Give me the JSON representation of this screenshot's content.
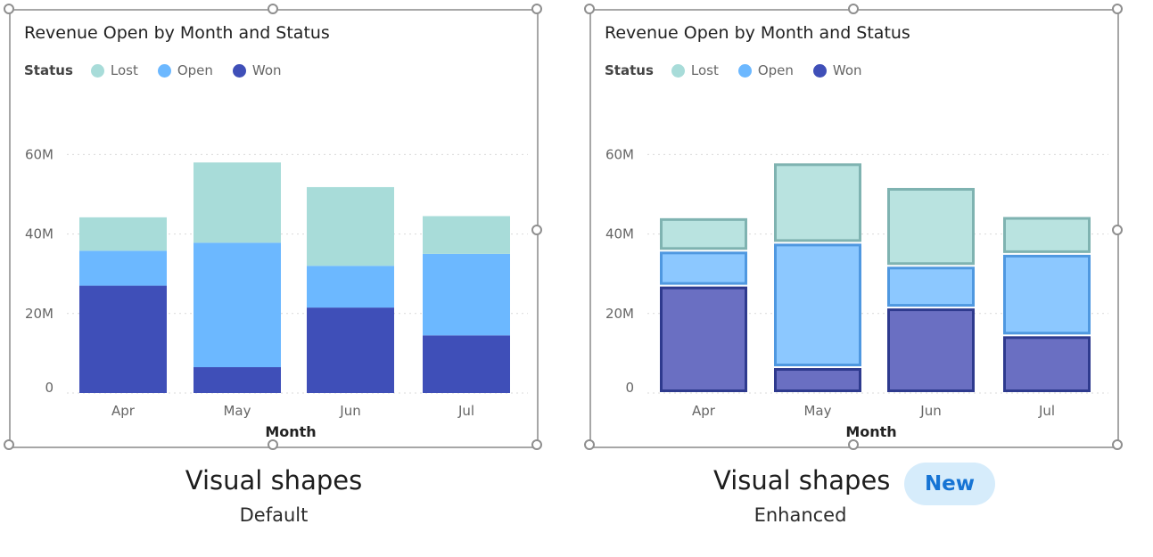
{
  "legend": {
    "title": "Status",
    "items": [
      {
        "label": "Lost",
        "color": "#a8dcd9"
      },
      {
        "label": "Open",
        "color": "#6cb8ff"
      },
      {
        "label": "Won",
        "color": "#3f4fb8"
      }
    ]
  },
  "captions": {
    "left_title": "Visual shapes",
    "left_subtitle": "Default",
    "right_title": "Visual shapes",
    "right_subtitle": "Enhanced",
    "badge": "New"
  },
  "chart_data": [
    {
      "type": "bar",
      "stacked": true,
      "style": "default",
      "title": "Revenue Open by Month and Status",
      "xlabel": "Month",
      "ylabel": "",
      "categories": [
        "Apr",
        "May",
        "Jun",
        "Jul"
      ],
      "yticks": [
        "0",
        "20M",
        "40M",
        "60M"
      ],
      "ylim": [
        0,
        63
      ],
      "grid": true,
      "legend_position": "top-left",
      "series": [
        {
          "name": "Won",
          "values": [
            27,
            6.5,
            21.5,
            14.5
          ]
        },
        {
          "name": "Open",
          "values": [
            8.8,
            31.3,
            10.5,
            20.5
          ]
        },
        {
          "name": "Lost",
          "values": [
            8.4,
            20.2,
            19.8,
            9.5
          ]
        }
      ]
    },
    {
      "type": "bar",
      "stacked": true,
      "style": "enhanced",
      "title": "Revenue Open by Month and Status",
      "xlabel": "Month",
      "ylabel": "",
      "categories": [
        "Apr",
        "May",
        "Jun",
        "Jul"
      ],
      "yticks": [
        "0",
        "20M",
        "40M",
        "60M"
      ],
      "ylim": [
        0,
        63
      ],
      "grid": true,
      "legend_position": "top-left",
      "series": [
        {
          "name": "Won",
          "values": [
            27,
            6.5,
            21.5,
            14.5
          ]
        },
        {
          "name": "Open",
          "values": [
            8.8,
            31.3,
            10.5,
            20.5
          ]
        },
        {
          "name": "Lost",
          "values": [
            8.4,
            20.2,
            19.8,
            9.5
          ]
        }
      ]
    }
  ]
}
